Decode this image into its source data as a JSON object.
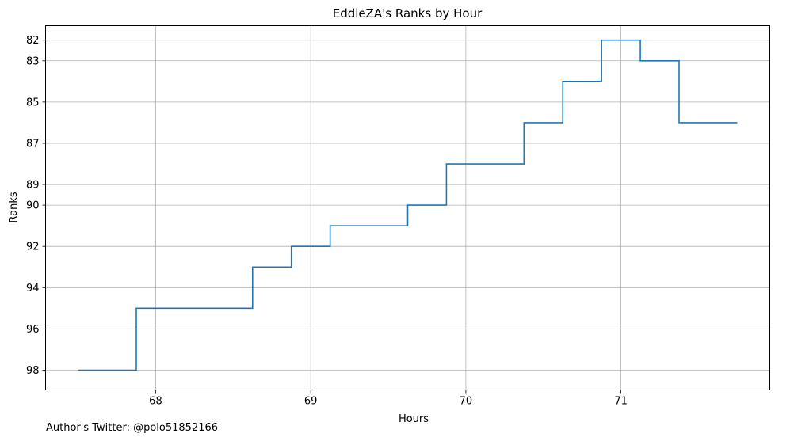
{
  "chart_data": {
    "type": "line",
    "step": "post",
    "title": "EddieZA's Ranks by Hour",
    "xlabel": "Hours",
    "ylabel": "Ranks",
    "xlim": [
      67.29,
      71.96
    ],
    "ylim": [
      98.96,
      81.3
    ],
    "y_inverted": true,
    "grid": true,
    "xticks": [
      68,
      69,
      70,
      71
    ],
    "yticks": [
      82,
      83,
      85,
      87,
      89,
      90,
      92,
      94,
      96,
      98
    ],
    "line_color": "#1f77b4",
    "series": [
      {
        "x": [
          67.5,
          67.875,
          68.625,
          68.875,
          69.125,
          69.625,
          69.875,
          70.375,
          70.625,
          70.875,
          71.125,
          71.375,
          71.75
        ],
        "y": [
          98,
          95,
          93,
          92,
          91,
          90,
          88,
          86,
          84,
          82,
          83,
          86,
          86
        ]
      }
    ]
  },
  "footnote": "Author's Twitter: @polo51852166"
}
